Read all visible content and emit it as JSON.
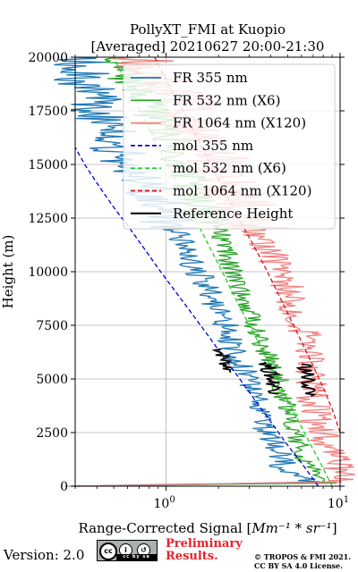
{
  "chart_data": {
    "type": "line",
    "title": "PollyXT_FMI at Kuopio",
    "subtitle": "[Averaged] 20210627 20:00-21:30",
    "xlabel_prefix": "Range-Corrected Signal [",
    "xlabel_unit": "Mm⁻¹ * sr⁻¹",
    "xlabel_suffix": "]",
    "ylabel": "Height (m)",
    "xscale": "log",
    "xlim": [
      0.3,
      10
    ],
    "ylim": [
      0,
      20000
    ],
    "x_ticks": [
      {
        "value": 1,
        "base": "10",
        "exp": "0"
      },
      {
        "value": 10,
        "base": "10",
        "exp": "1"
      }
    ],
    "y_ticks": [
      0,
      2500,
      5000,
      7500,
      10000,
      12500,
      15000,
      17500,
      20000
    ],
    "grid": true,
    "legend_position": "top-right",
    "series": [
      {
        "name": "FR 355 nm",
        "style": "solid",
        "color": "#1f77b4",
        "width": 1.3,
        "noise": 0.08,
        "seed": 1,
        "points": [
          [
            0.3,
            0
          ],
          [
            7.0,
            200
          ],
          [
            5.5,
            450
          ],
          [
            4.8,
            800
          ],
          [
            4.4,
            1500
          ],
          [
            4.0,
            2200
          ],
          [
            3.6,
            3000
          ],
          [
            3.4,
            3700
          ],
          [
            3.1,
            4300
          ],
          [
            2.9,
            5000
          ],
          [
            2.6,
            6000
          ],
          [
            2.2,
            7500
          ],
          [
            1.9,
            8500
          ],
          [
            1.65,
            9500
          ],
          [
            1.4,
            10500
          ],
          [
            1.2,
            11500
          ],
          [
            1.0,
            12500
          ],
          [
            0.82,
            13500
          ],
          [
            0.66,
            14500
          ],
          [
            0.5,
            16000
          ],
          [
            0.4,
            17500
          ],
          [
            0.33,
            19000
          ],
          [
            0.3,
            20000
          ]
        ]
      },
      {
        "name": "FR 532 nm (X6)",
        "style": "solid",
        "color": "#2ca02c",
        "width": 1.3,
        "noise": 0.06,
        "seed": 2,
        "points": [
          [
            0.3,
            0
          ],
          [
            9.0,
            150
          ],
          [
            7.6,
            400
          ],
          [
            6.5,
            900
          ],
          [
            5.9,
            1800
          ],
          [
            5.6,
            2500
          ],
          [
            5.1,
            3500
          ],
          [
            4.8,
            4100
          ],
          [
            4.4,
            5000
          ],
          [
            3.9,
            6000
          ],
          [
            3.4,
            7000
          ],
          [
            3.0,
            8000
          ],
          [
            2.7,
            9000
          ],
          [
            2.4,
            10000
          ],
          [
            2.2,
            11000
          ],
          [
            2.0,
            12000
          ],
          [
            1.7,
            13000
          ],
          [
            1.45,
            14000
          ],
          [
            1.25,
            15000
          ],
          [
            1.05,
            16000
          ],
          [
            0.9,
            17000
          ],
          [
            0.75,
            18000
          ],
          [
            0.62,
            19000
          ],
          [
            0.5,
            20000
          ]
        ]
      },
      {
        "name": "FR 1064 nm (X120)",
        "style": "solid",
        "color": "#f08080",
        "width": 1.3,
        "noise": 0.1,
        "seed": 3,
        "points": [
          [
            0.3,
            0
          ],
          [
            9.5,
            200
          ],
          [
            10,
            600
          ],
          [
            10,
            1000
          ],
          [
            9.6,
            1600
          ],
          [
            8.2,
            2200
          ],
          [
            7.3,
            3000
          ],
          [
            7.0,
            4000
          ],
          [
            6.8,
            5000
          ],
          [
            6.6,
            6000
          ],
          [
            6.3,
            7000
          ],
          [
            5.8,
            8000
          ],
          [
            5.1,
            9000
          ],
          [
            4.5,
            10000
          ],
          [
            3.9,
            11000
          ],
          [
            3.3,
            12000
          ],
          [
            2.8,
            13000
          ],
          [
            2.4,
            14000
          ],
          [
            2.0,
            15000
          ],
          [
            1.7,
            16000
          ],
          [
            1.45,
            17000
          ],
          [
            1.2,
            18000
          ],
          [
            0.95,
            19000
          ],
          [
            0.7,
            20000
          ]
        ]
      },
      {
        "name": "mol 355 nm",
        "style": "dashed",
        "color": "#0000cc",
        "width": 1.3,
        "noise": 0,
        "points": [
          [
            7.5,
            0
          ],
          [
            6.1,
            1000
          ],
          [
            4.9,
            2000
          ],
          [
            4.0,
            3000
          ],
          [
            3.25,
            4000
          ],
          [
            2.65,
            5000
          ],
          [
            2.15,
            6000
          ],
          [
            1.75,
            7000
          ],
          [
            1.42,
            8000
          ],
          [
            1.15,
            9000
          ],
          [
            0.93,
            10000
          ],
          [
            0.76,
            11000
          ],
          [
            0.62,
            12000
          ],
          [
            0.5,
            13000
          ],
          [
            0.41,
            14000
          ],
          [
            0.34,
            15000
          ],
          [
            0.3,
            15800
          ]
        ]
      },
      {
        "name": "mol 532 nm (X6)",
        "style": "dashed",
        "color": "#1fcc1f",
        "width": 1.3,
        "noise": 0,
        "points": [
          [
            9.0,
            0
          ],
          [
            7.8,
            1000
          ],
          [
            6.7,
            2000
          ],
          [
            5.8,
            3000
          ],
          [
            5.0,
            4000
          ],
          [
            4.35,
            5000
          ],
          [
            3.75,
            6000
          ],
          [
            3.25,
            7000
          ],
          [
            2.8,
            8000
          ],
          [
            2.42,
            9000
          ],
          [
            2.1,
            10000
          ],
          [
            1.82,
            11000
          ],
          [
            1.57,
            12000
          ],
          [
            1.36,
            13000
          ],
          [
            1.18,
            14000
          ],
          [
            1.02,
            15000
          ],
          [
            0.88,
            16000
          ],
          [
            0.76,
            17000
          ],
          [
            0.66,
            18000
          ],
          [
            0.57,
            19000
          ],
          [
            0.5,
            20000
          ]
        ]
      },
      {
        "name": "mol 1064 nm (X120)",
        "style": "dashed",
        "color": "#dd1111",
        "width": 1.3,
        "noise": 0,
        "points": [
          [
            10,
            2500
          ],
          [
            9.1,
            3500
          ],
          [
            8.1,
            4500
          ],
          [
            7.1,
            5500
          ],
          [
            6.2,
            6500
          ],
          [
            5.4,
            7500
          ],
          [
            4.7,
            8500
          ],
          [
            4.1,
            9500
          ],
          [
            3.55,
            10500
          ],
          [
            3.05,
            11500
          ],
          [
            2.6,
            12500
          ],
          [
            2.25,
            13500
          ],
          [
            1.95,
            14500
          ],
          [
            1.68,
            15500
          ],
          [
            1.45,
            16500
          ],
          [
            1.25,
            17500
          ],
          [
            1.07,
            18500
          ],
          [
            0.92,
            19500
          ],
          [
            0.86,
            20000
          ]
        ]
      },
      {
        "name": "Reference Height",
        "style": "solid",
        "color": "#000000",
        "width": 1.6,
        "noise": 0.05,
        "seed": 7,
        "segments": [
          [
            [
              2.05,
              6400
            ],
            [
              2.15,
              6000
            ],
            [
              2.25,
              5600
            ],
            [
              2.35,
              5300
            ]
          ],
          [
            [
              3.75,
              5800
            ],
            [
              3.9,
              5400
            ],
            [
              4.05,
              5000
            ],
            [
              4.25,
              4600
            ],
            [
              4.4,
              4300
            ]
          ],
          [
            [
              6.3,
              5700
            ],
            [
              6.4,
              5200
            ],
            [
              6.55,
              4700
            ],
            [
              6.8,
              4200
            ]
          ]
        ]
      }
    ]
  },
  "footer": {
    "version": "Version: 2.0",
    "license_badge": "cc by sa",
    "preliminary": "Preliminary",
    "results": "Results.",
    "copyright_line1": "© TROPOS & FMI 2021.",
    "copyright_line2": "CC BY SA 4.0 License."
  }
}
